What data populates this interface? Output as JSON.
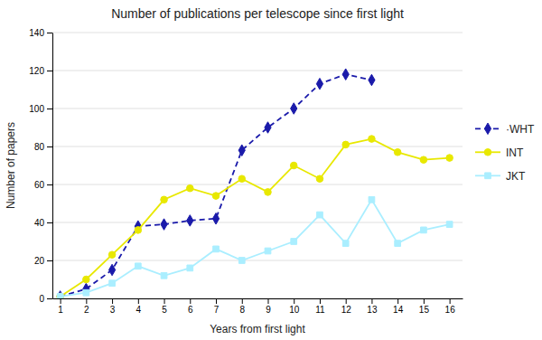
{
  "chart_data": {
    "type": "line",
    "title": "Number of publications per telescope since first light",
    "x_label": "Years from first light",
    "y_label": "Number of papers",
    "xlim": [
      0.7,
      16.5
    ],
    "ylim": [
      0,
      140
    ],
    "xticks": [
      1,
      2,
      3,
      4,
      5,
      6,
      7,
      8,
      9,
      10,
      11,
      12,
      13,
      14,
      15,
      16
    ],
    "yticks": [
      0,
      20,
      40,
      60,
      80,
      100,
      120,
      140
    ],
    "grid": true,
    "legend": "right",
    "series": [
      {
        "name": "·WHT",
        "color": "#1a1aaa",
        "marker": "diamond",
        "line_style": "dashed",
        "x": [
          1,
          2,
          3,
          4,
          5,
          6,
          7,
          8,
          9,
          10,
          11,
          12,
          13
        ],
        "values": [
          1,
          5,
          15,
          38,
          39,
          41,
          42,
          78,
          90,
          100,
          113,
          118,
          115
        ]
      },
      {
        "name": "INT",
        "color": "#e8e800",
        "marker": "circle",
        "line_style": "solid",
        "x": [
          1,
          2,
          3,
          4,
          5,
          6,
          7,
          8,
          9,
          10,
          11,
          12,
          13,
          14,
          15,
          16
        ],
        "values": [
          1,
          10,
          23,
          36,
          52,
          58,
          54,
          63,
          56,
          70,
          63,
          81,
          84,
          77,
          73,
          74
        ]
      },
      {
        "name": "JKT",
        "color": "#aaeeff",
        "marker": "square",
        "line_style": "solid",
        "x": [
          1,
          2,
          3,
          4,
          5,
          6,
          7,
          8,
          9,
          10,
          11,
          12,
          13,
          14,
          15,
          16
        ],
        "values": [
          1,
          3,
          8,
          17,
          12,
          16,
          26,
          20,
          25,
          30,
          44,
          29,
          52,
          29,
          36,
          39
        ]
      }
    ]
  }
}
